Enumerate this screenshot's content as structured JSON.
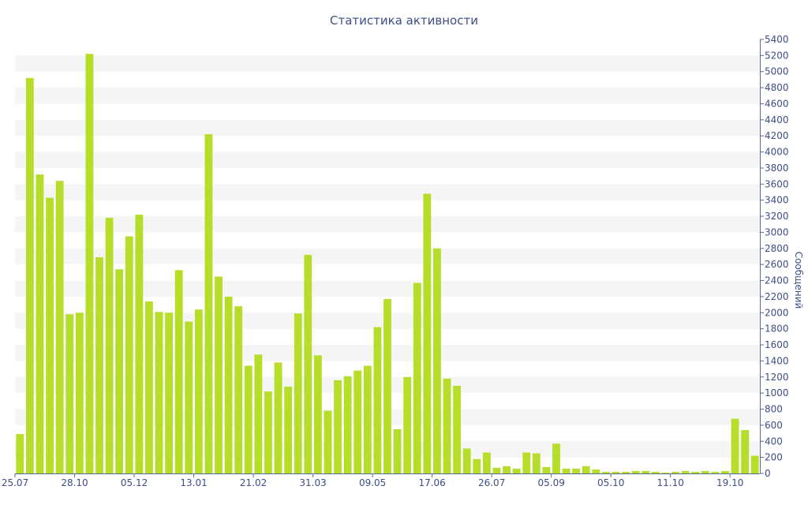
{
  "chart_data": {
    "type": "bar",
    "title": "Статистика активности",
    "xlabel": "",
    "ylabel": "Сообщений",
    "ylim": [
      0,
      5400
    ],
    "y_axis_side": "right",
    "grid": "horizontal bands",
    "legend": "none",
    "colors": {
      "bar": "#b5dd2a",
      "text": "#3e4e86",
      "band": "#f5f5f5",
      "axis": "#5a6a98"
    },
    "yticks": [
      0,
      200,
      400,
      600,
      800,
      1000,
      1200,
      1400,
      1600,
      1800,
      2000,
      2200,
      2400,
      2600,
      2800,
      3000,
      3200,
      3400,
      3600,
      3800,
      4000,
      4200,
      4400,
      4600,
      4800,
      5000,
      5200,
      5400
    ],
    "xtick_labels": [
      {
        "index": 0,
        "label": "25.07"
      },
      {
        "index": 6,
        "label": "28.10"
      },
      {
        "index": 12,
        "label": "05.12"
      },
      {
        "index": 18,
        "label": "13.01"
      },
      {
        "index": 24,
        "label": "21.02"
      },
      {
        "index": 30,
        "label": "31.03"
      },
      {
        "index": 36,
        "label": "09.05"
      },
      {
        "index": 42,
        "label": "17.06"
      },
      {
        "index": 48,
        "label": "26.07"
      },
      {
        "index": 54,
        "label": "05.09"
      },
      {
        "index": 60,
        "label": "05.10"
      },
      {
        "index": 66,
        "label": "11.10"
      },
      {
        "index": 72,
        "label": "19.10"
      }
    ],
    "values": [
      490,
      4920,
      3720,
      3430,
      3640,
      1980,
      2000,
      5220,
      2690,
      3180,
      2540,
      2950,
      3220,
      2140,
      2010,
      2000,
      2530,
      1890,
      2040,
      4220,
      2450,
      2200,
      2080,
      1340,
      1480,
      1020,
      1380,
      1080,
      1990,
      2720,
      1470,
      780,
      1160,
      1210,
      1280,
      1340,
      1820,
      2170,
      550,
      1200,
      2370,
      3480,
      2800,
      1180,
      1090,
      310,
      180,
      260,
      70,
      90,
      60,
      260,
      250,
      80,
      370,
      60,
      60,
      90,
      50,
      20,
      20,
      20,
      30,
      30,
      20,
      10,
      20,
      30,
      20,
      30,
      20,
      30,
      680,
      540,
      220
    ]
  }
}
